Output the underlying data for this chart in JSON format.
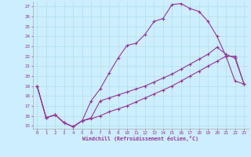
{
  "xlabel": "Windchill (Refroidissement éolien,°C)",
  "bg_color": "#cceeff",
  "line_color": "#993399",
  "grid_color": "#aadddd",
  "xlim": [
    -0.5,
    23.5
  ],
  "ylim": [
    14.7,
    27.5
  ],
  "yticks": [
    15,
    16,
    17,
    18,
    19,
    20,
    21,
    22,
    23,
    24,
    25,
    26,
    27
  ],
  "xticks": [
    0,
    1,
    2,
    3,
    4,
    5,
    6,
    7,
    8,
    9,
    10,
    11,
    12,
    13,
    14,
    15,
    16,
    17,
    18,
    19,
    20,
    21,
    22,
    23
  ],
  "line1_x": [
    0,
    1,
    2,
    3,
    4,
    5,
    6,
    7,
    8,
    9,
    10,
    11,
    12,
    13,
    14,
    15,
    16,
    17,
    18,
    19,
    20,
    21,
    22,
    23
  ],
  "line1_y": [
    19.0,
    15.8,
    16.1,
    15.3,
    14.9,
    15.5,
    17.5,
    18.7,
    20.3,
    21.8,
    23.1,
    23.3,
    24.2,
    25.5,
    25.8,
    27.2,
    27.3,
    26.8,
    26.5,
    25.5,
    24.0,
    22.0,
    19.5,
    19.2
  ],
  "line2_x": [
    0,
    1,
    2,
    3,
    4,
    5,
    6,
    7,
    8,
    9,
    10,
    11,
    12,
    13,
    14,
    15,
    16,
    17,
    18,
    19,
    20,
    21,
    22,
    23
  ],
  "line2_y": [
    19.0,
    15.8,
    16.1,
    15.3,
    14.9,
    15.5,
    15.7,
    16.0,
    16.4,
    16.7,
    17.0,
    17.4,
    17.8,
    18.2,
    18.6,
    19.0,
    19.5,
    20.0,
    20.5,
    21.0,
    21.5,
    22.0,
    22.0,
    19.2
  ],
  "line3_x": [
    0,
    1,
    2,
    3,
    4,
    5,
    6,
    7,
    8,
    9,
    10,
    11,
    12,
    13,
    14,
    15,
    16,
    17,
    18,
    19,
    20,
    21,
    22,
    23
  ],
  "line3_y": [
    19.0,
    15.8,
    16.1,
    15.3,
    14.9,
    15.5,
    15.8,
    17.5,
    17.8,
    18.1,
    18.4,
    18.7,
    19.0,
    19.4,
    19.8,
    20.2,
    20.7,
    21.2,
    21.7,
    22.2,
    22.9,
    22.2,
    21.8,
    19.2
  ]
}
